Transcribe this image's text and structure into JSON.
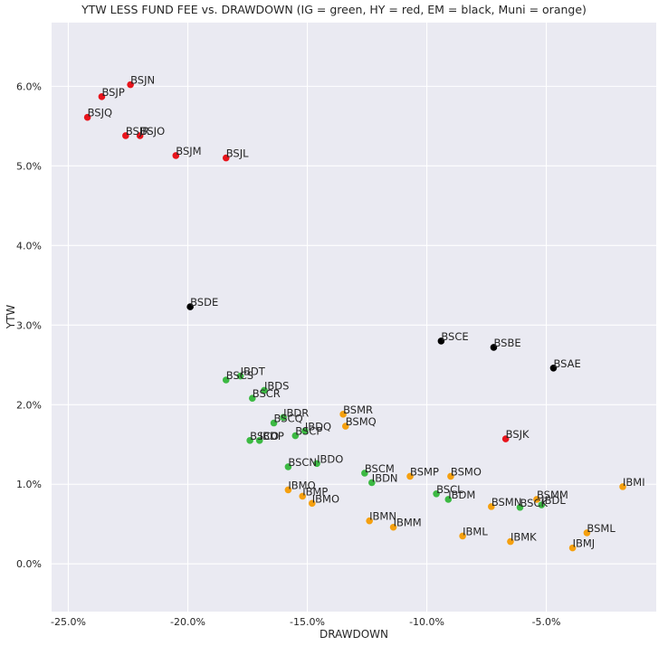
{
  "chart_data": {
    "type": "scatter",
    "title": "YTW LESS FUND FEE vs. DRAWDOWN (IG = green, HY = red, EM = black, Muni = orange)",
    "xlabel": "DRAWDOWN",
    "ylabel": "YTW",
    "xlim": [
      -25.7,
      -0.4
    ],
    "ylim": [
      -0.6,
      6.8
    ],
    "x_ticks": [
      -25,
      -20,
      -15,
      -10,
      -5
    ],
    "x_tick_labels": [
      "-25.0%",
      "-20.0%",
      "-15.0%",
      "-10.0%",
      "-5.0%"
    ],
    "y_ticks": [
      0,
      1,
      2,
      3,
      4,
      5,
      6
    ],
    "y_tick_labels": [
      "0.0%",
      "1.0%",
      "2.0%",
      "3.0%",
      "4.0%",
      "5.0%",
      "6.0%"
    ],
    "grid": true,
    "background": "#eaeaf2",
    "colors": {
      "IG": "#3cb943",
      "HY": "#e8141c",
      "EM": "#000000",
      "Muni": "#f5a00f"
    },
    "points": [
      {
        "label": "BSJN",
        "x": -22.4,
        "y": 6.02,
        "group": "HY"
      },
      {
        "label": "BSJP",
        "x": -23.6,
        "y": 5.87,
        "group": "HY"
      },
      {
        "label": "BSJQ",
        "x": -24.2,
        "y": 5.61,
        "group": "HY"
      },
      {
        "label": "BSJR",
        "x": -22.6,
        "y": 5.38,
        "group": "HY"
      },
      {
        "label": "BSJO",
        "x": -22.0,
        "y": 5.38,
        "group": "HY"
      },
      {
        "label": "BSJM",
        "x": -20.5,
        "y": 5.13,
        "group": "HY"
      },
      {
        "label": "BSJL",
        "x": -18.4,
        "y": 5.1,
        "group": "HY"
      },
      {
        "label": "BSJK",
        "x": -6.7,
        "y": 1.57,
        "group": "HY"
      },
      {
        "label": "BSDE",
        "x": -19.9,
        "y": 3.23,
        "group": "EM"
      },
      {
        "label": "BSCE",
        "x": -9.4,
        "y": 2.8,
        "group": "EM"
      },
      {
        "label": "BSBE",
        "x": -7.2,
        "y": 2.72,
        "group": "EM"
      },
      {
        "label": "BSAE",
        "x": -4.7,
        "y": 2.46,
        "group": "EM"
      },
      {
        "label": "BSCS",
        "x": -18.4,
        "y": 2.31,
        "group": "IG"
      },
      {
        "label": "IBDT",
        "x": -17.8,
        "y": 2.36,
        "group": "IG"
      },
      {
        "label": "IBDS",
        "x": -16.8,
        "y": 2.18,
        "group": "IG"
      },
      {
        "label": "BSCR",
        "x": -17.3,
        "y": 2.08,
        "group": "IG"
      },
      {
        "label": "IBDR",
        "x": -16.0,
        "y": 1.84,
        "group": "IG"
      },
      {
        "label": "BSCQ",
        "x": -16.4,
        "y": 1.77,
        "group": "IG"
      },
      {
        "label": "IBDQ",
        "x": -15.1,
        "y": 1.67,
        "group": "IG"
      },
      {
        "label": "BSCP",
        "x": -15.5,
        "y": 1.61,
        "group": "IG"
      },
      {
        "label": "BSCO",
        "x": -17.4,
        "y": 1.55,
        "group": "IG"
      },
      {
        "label": "IBDP",
        "x": -17.0,
        "y": 1.55,
        "group": "IG"
      },
      {
        "label": "BSCN",
        "x": -15.8,
        "y": 1.22,
        "group": "IG"
      },
      {
        "label": "IBDO",
        "x": -14.6,
        "y": 1.26,
        "group": "IG"
      },
      {
        "label": "BSCM",
        "x": -12.6,
        "y": 1.14,
        "group": "IG"
      },
      {
        "label": "IBDN",
        "x": -12.3,
        "y": 1.02,
        "group": "IG"
      },
      {
        "label": "BSCL",
        "x": -9.6,
        "y": 0.88,
        "group": "IG"
      },
      {
        "label": "IBDM",
        "x": -9.1,
        "y": 0.81,
        "group": "IG"
      },
      {
        "label": "BSCK",
        "x": -6.1,
        "y": 0.71,
        "group": "IG"
      },
      {
        "label": "IBDL",
        "x": -5.2,
        "y": 0.74,
        "group": "IG"
      },
      {
        "label": "BSMR",
        "x": -13.5,
        "y": 1.88,
        "group": "Muni"
      },
      {
        "label": "BSMQ",
        "x": -13.4,
        "y": 1.73,
        "group": "Muni"
      },
      {
        "label": "BSMP",
        "x": -10.7,
        "y": 1.1,
        "group": "Muni"
      },
      {
        "label": "BSMO",
        "x": -9.0,
        "y": 1.1,
        "group": "Muni"
      },
      {
        "label": "IBMO",
        "x": -15.8,
        "y": 0.93,
        "group": "Muni"
      },
      {
        "label": "IBMP",
        "x": -15.2,
        "y": 0.85,
        "group": "Muni"
      },
      {
        "label": "IBMO",
        "x": -14.8,
        "y": 0.76,
        "group": "Muni"
      },
      {
        "label": "IBMN",
        "x": -12.4,
        "y": 0.54,
        "group": "Muni"
      },
      {
        "label": "IBMM",
        "x": -11.4,
        "y": 0.46,
        "group": "Muni"
      },
      {
        "label": "BSMN",
        "x": -7.3,
        "y": 0.72,
        "group": "Muni"
      },
      {
        "label": "BSMM",
        "x": -5.4,
        "y": 0.81,
        "group": "Muni"
      },
      {
        "label": "IBML",
        "x": -8.5,
        "y": 0.35,
        "group": "Muni"
      },
      {
        "label": "IBMK",
        "x": -6.5,
        "y": 0.28,
        "group": "Muni"
      },
      {
        "label": "BSML",
        "x": -3.3,
        "y": 0.39,
        "group": "Muni"
      },
      {
        "label": "IBMJ",
        "x": -3.9,
        "y": 0.2,
        "group": "Muni"
      },
      {
        "label": "IBMI",
        "x": -1.8,
        "y": 0.97,
        "group": "Muni"
      }
    ]
  }
}
